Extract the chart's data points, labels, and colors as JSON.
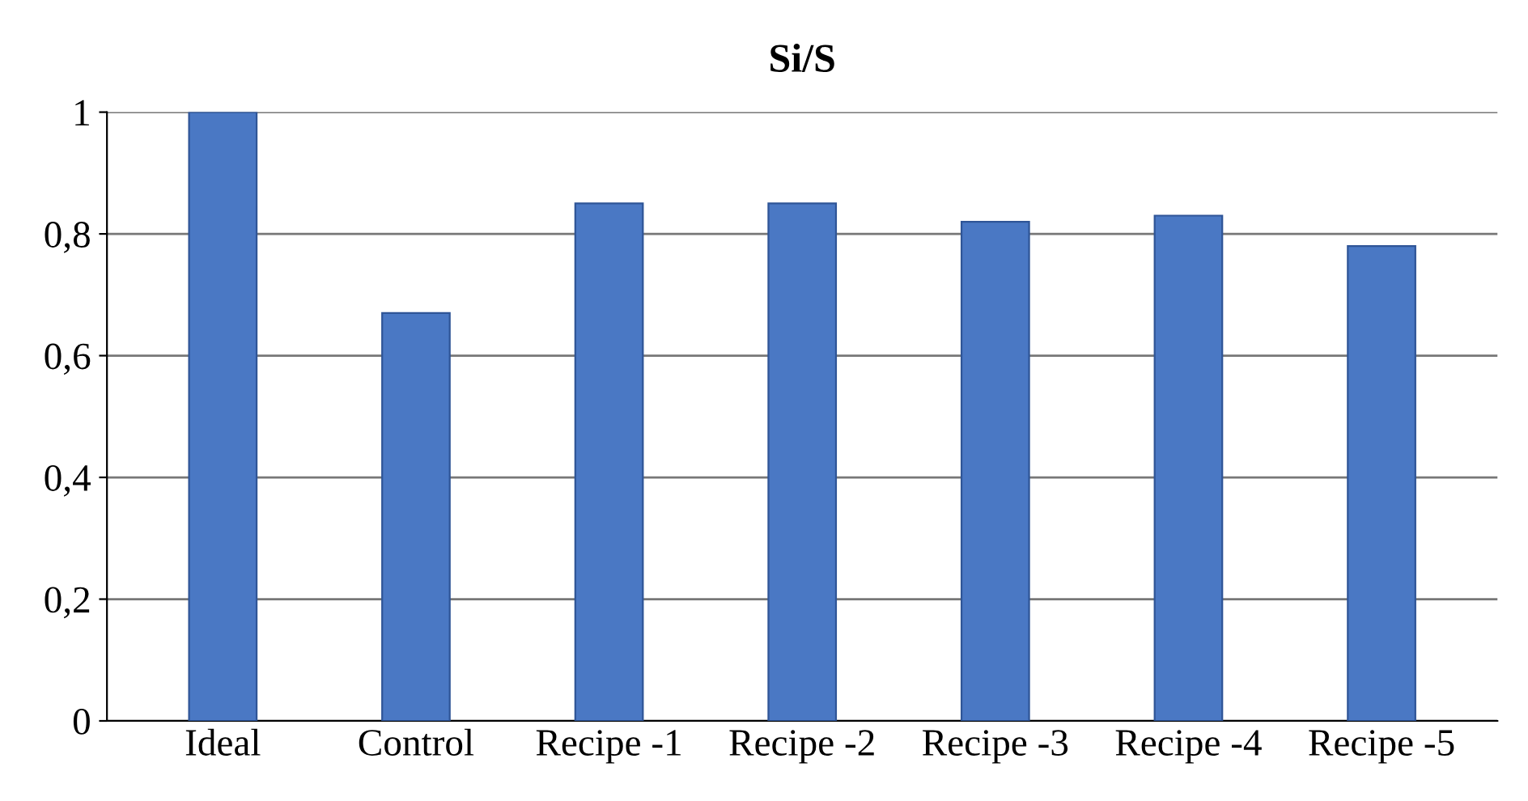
{
  "chart_data": {
    "type": "bar",
    "title": "Si/S",
    "categories": [
      "Ideal",
      "Control",
      "Recipe -1",
      "Recipe -2",
      "Recipe -3",
      "Recipe -4",
      "Recipe -5"
    ],
    "values": [
      1,
      0.67,
      0.85,
      0.85,
      0.82,
      0.83,
      0.78
    ],
    "color": "#4a78c4",
    "ylim": [
      0,
      1
    ],
    "yticks": [
      0,
      {
        "value": 0.2,
        "label": "0,2"
      },
      {
        "value": 0.4,
        "label": "0,4"
      },
      {
        "value": 0.6,
        "label": "0,6"
      },
      {
        "value": 0.8,
        "label": "0,8"
      },
      1
    ],
    "grid": "y"
  }
}
